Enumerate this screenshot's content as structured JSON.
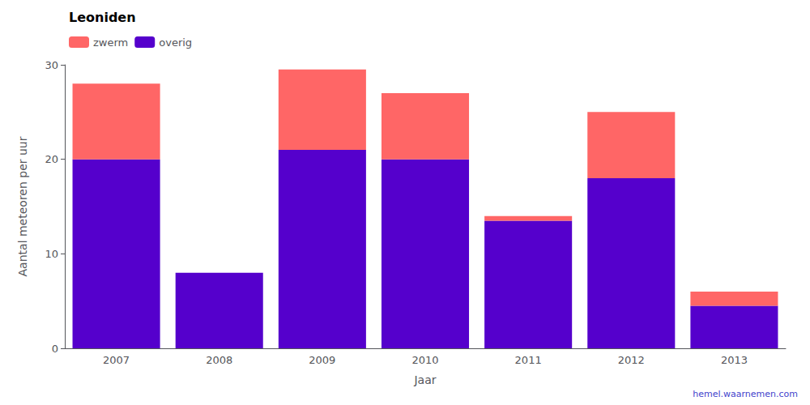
{
  "chart_data": {
    "type": "bar",
    "title": "Leoniden",
    "xlabel": "Jaar",
    "ylabel": "Aantal meteoren per uur",
    "categories": [
      "2007",
      "2008",
      "2009",
      "2010",
      "2011",
      "2012",
      "2013"
    ],
    "series": [
      {
        "name": "overig",
        "color": "#5500CC",
        "values": [
          20,
          8,
          21,
          20,
          13.5,
          18,
          4.5
        ]
      },
      {
        "name": "zwerm",
        "color": "#FF6666",
        "values": [
          8,
          0,
          8.5,
          7,
          0.5,
          7,
          1.5
        ]
      }
    ],
    "stacked": true,
    "ylim": [
      0,
      30
    ],
    "yticks": [
      0,
      10,
      20,
      30
    ],
    "grid": false,
    "legend": "upper left",
    "annotations": [
      "hemel.waarnemen.com"
    ]
  }
}
